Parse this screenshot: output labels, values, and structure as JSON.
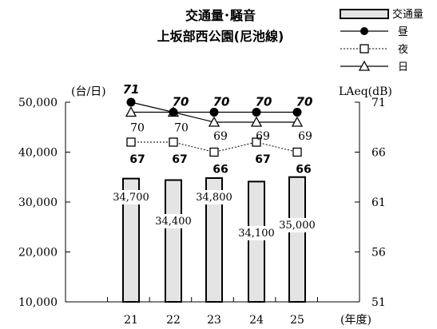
{
  "chart_data": {
    "type": "bar",
    "title_lines": [
      "交通量･騒音",
      "上坂部西公園(尼池線)"
    ],
    "categories": [
      "21",
      "22",
      "23",
      "24",
      "25"
    ],
    "x_unit": "(年度)",
    "y_left": {
      "unit": "(台/日)",
      "ylim": [
        10000,
        50000
      ],
      "ticks": [
        "10,000",
        "20,000",
        "30,000",
        "40,000",
        "50,000"
      ]
    },
    "y_right": {
      "unit": "LAeq(dB)",
      "ylim": [
        51,
        71
      ],
      "ticks": [
        "51",
        "56",
        "61",
        "66",
        "71"
      ]
    },
    "bars": {
      "name": "交通量",
      "values": [
        34700,
        34400,
        34800,
        34100,
        35000
      ],
      "labels": [
        "34,700",
        "34,400",
        "34,800",
        "34,100",
        "35,000"
      ]
    },
    "series": [
      {
        "name": "昼",
        "axis": "right",
        "marker": "filled-circle",
        "values": [
          71,
          70,
          70,
          70,
          70
        ]
      },
      {
        "name": "夜",
        "axis": "right",
        "marker": "open-square",
        "values": [
          67,
          67,
          66,
          67,
          66
        ]
      },
      {
        "name": "日",
        "axis": "right",
        "marker": "open-triangle",
        "values": [
          70,
          70,
          69,
          69,
          69
        ]
      }
    ],
    "legend_position": "top-right",
    "grid": false,
    "colors": {
      "bar_fill": "#e4e4e4",
      "line": "#000000"
    }
  }
}
